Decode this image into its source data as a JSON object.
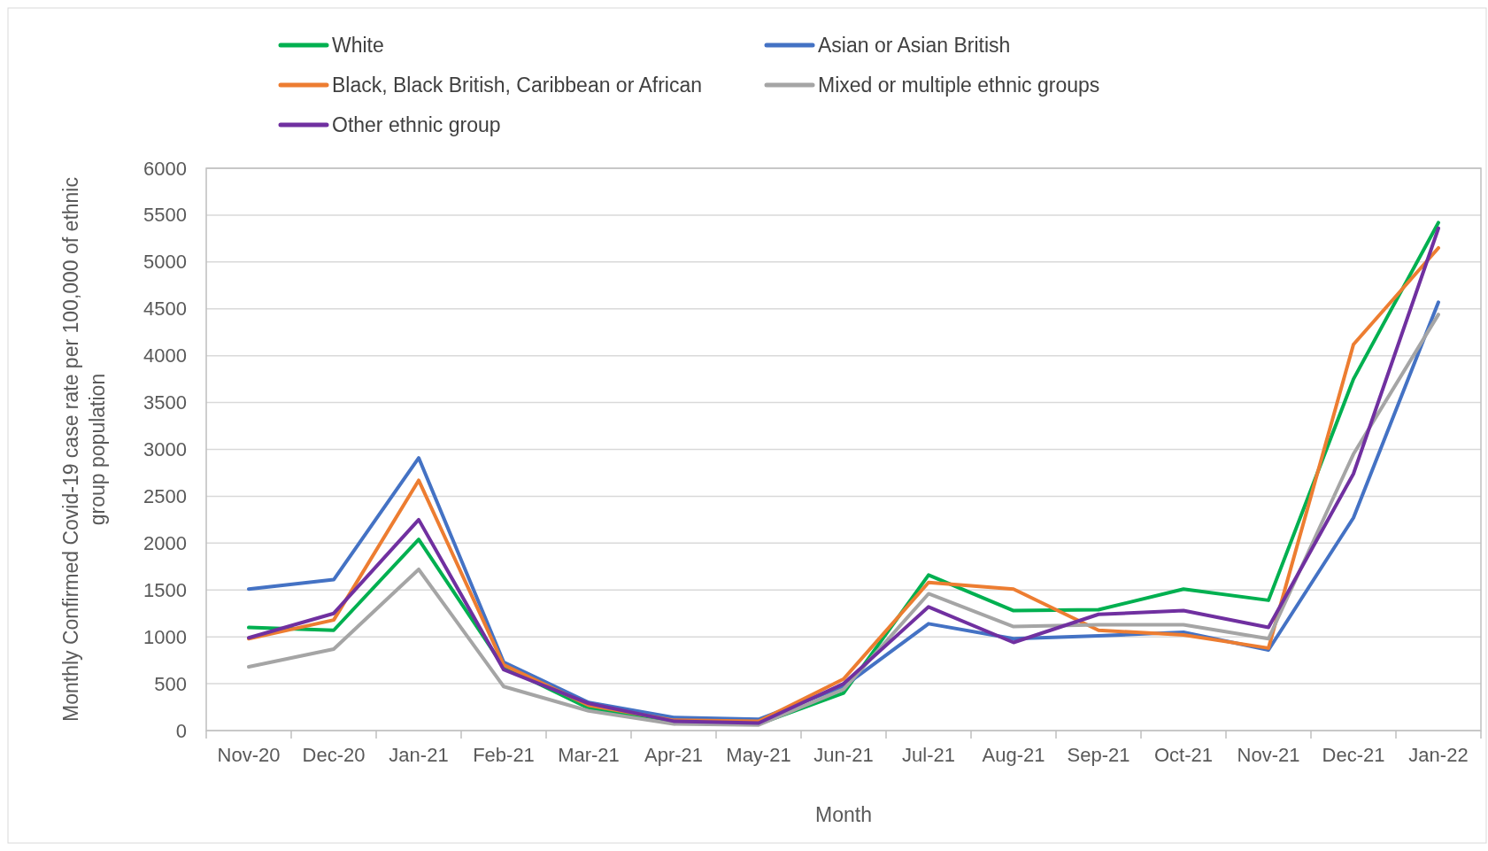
{
  "chart_data": {
    "type": "line",
    "xlabel": "Month",
    "ylabel": "Monthly Confirmed Covid-19 case rate per 100,000 of ethnic group population",
    "categories": [
      "Nov-20",
      "Dec-20",
      "Jan-21",
      "Feb-21",
      "Mar-21",
      "Apr-21",
      "May-21",
      "Jun-21",
      "Jul-21",
      "Aug-21",
      "Sep-21",
      "Oct-21",
      "Nov-21",
      "Dec-21",
      "Jan-22"
    ],
    "series": [
      {
        "name": "White",
        "color": "#00b050",
        "values": [
          1100,
          1070,
          2040,
          680,
          240,
          100,
          70,
          400,
          1660,
          1280,
          1290,
          1510,
          1390,
          3750,
          5420
        ]
      },
      {
        "name": "Asian or Asian British",
        "color": "#4472c4",
        "values": [
          1510,
          1610,
          2910,
          730,
          300,
          140,
          120,
          470,
          1140,
          980,
          1010,
          1050,
          860,
          2270,
          4570
        ]
      },
      {
        "name": "Black, Black British, Caribbean or African",
        "color": "#ed7d31",
        "values": [
          980,
          1180,
          2670,
          700,
          270,
          110,
          100,
          550,
          1580,
          1510,
          1070,
          1020,
          880,
          4120,
          5150
        ]
      },
      {
        "name": "Mixed or multiple ethnic groups",
        "color": "#a5a5a5",
        "values": [
          680,
          870,
          1720,
          470,
          210,
          70,
          60,
          440,
          1460,
          1110,
          1130,
          1130,
          980,
          2950,
          4440
        ]
      },
      {
        "name": "Other ethnic group",
        "color": "#7030a0",
        "values": [
          990,
          1250,
          2250,
          650,
          290,
          100,
          80,
          500,
          1320,
          940,
          1240,
          1280,
          1100,
          2740,
          5360
        ]
      }
    ],
    "ylim": [
      0,
      6000
    ],
    "yticks": [
      0,
      500,
      1000,
      1500,
      2000,
      2500,
      3000,
      3500,
      4000,
      4500,
      5000,
      5500,
      6000
    ],
    "grid": "y",
    "legend": "top left",
    "marker": "none",
    "line_style": "solid"
  }
}
